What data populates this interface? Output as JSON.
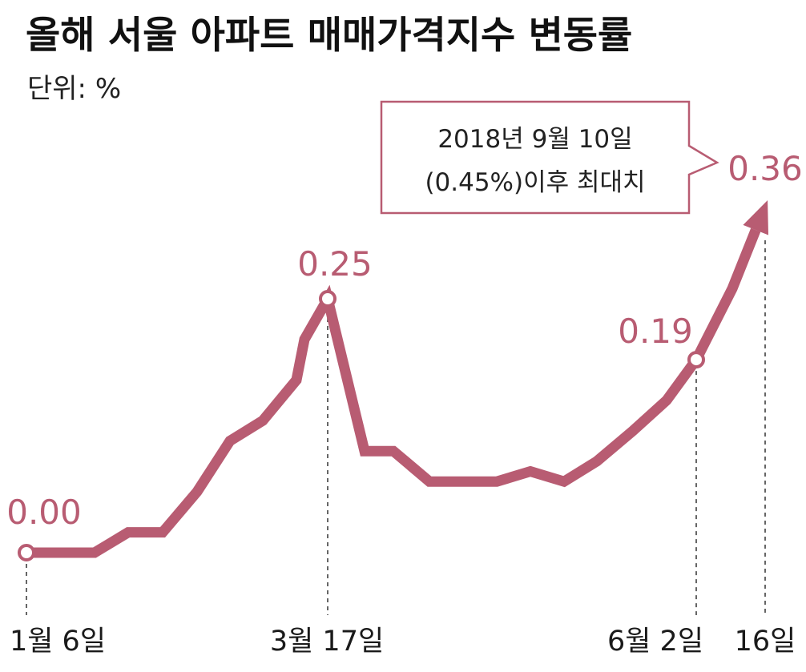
{
  "chart_data": {
    "type": "line",
    "title": "올해 서울 아파트 매매가격지수 변동률",
    "unit_label": "단위: %",
    "x_labels": [
      {
        "index": 0,
        "text": "1월 6일"
      },
      {
        "index": 10,
        "text": "3월 17일"
      },
      {
        "index": 21,
        "text": "6월 2일"
      },
      {
        "index": 23,
        "text": "16일"
      }
    ],
    "series": [
      {
        "values": [
          0.0,
          0.0,
          0.0,
          0.02,
          0.02,
          0.06,
          0.11,
          0.13,
          0.17,
          0.21,
          0.25,
          0.1,
          0.1,
          0.07,
          0.07,
          0.07,
          0.08,
          0.07,
          0.09,
          0.12,
          0.15,
          0.19,
          0.26,
          0.36
        ]
      }
    ],
    "highlights": [
      {
        "index": 0,
        "label": "0.00"
      },
      {
        "index": 10,
        "label": "0.25"
      },
      {
        "index": 21,
        "label": "0.19"
      },
      {
        "index": 23,
        "label": "0.36"
      }
    ],
    "annotation": {
      "lines": [
        "2018년 9월 10일",
        "(0.45%)이후 최대치"
      ]
    },
    "colors": {
      "line": "#b85c72",
      "marker_fill": "#ffffff",
      "callout_border": "#b85c72"
    },
    "grid": false,
    "legend": "none"
  }
}
